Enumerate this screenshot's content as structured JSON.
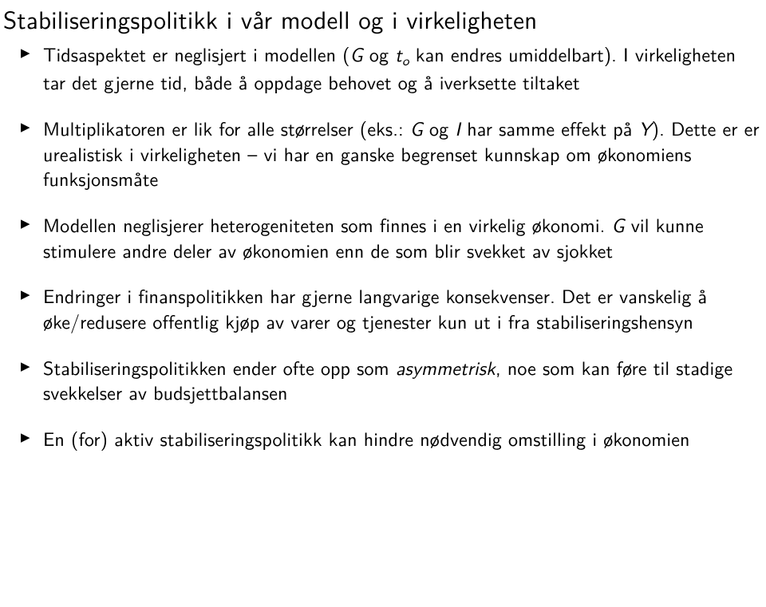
{
  "title": "Stabiliseringspolitikk i vår modell og i virkeligheten",
  "bullets": [
    {
      "html": "Tidsaspektet er neglisjert i modellen (<span class='ital'>G</span> og <span class='ital'>t<span class='sub'>o</span></span> kan endres umiddelbart). I virkeligheten tar det gjerne tid, både å oppdage behovet og å iverksette tiltaket"
    },
    {
      "html": "Multiplikatoren er lik for alle størrelser (eks.: <span class='ital'>G</span> og <span class='ital'>I</span> har samme effekt på <span class='ital'>Y</span>). Dette er er urealistisk i virkeligheten – vi har en ganske begrenset kunnskap om økonomiens funksjonsmåte"
    },
    {
      "html": "Modellen neglisjerer heterogeniteten som finnes i en virkelig økonomi. <span class='ital'>G</span> vil kunne stimulere andre deler av økonomien enn de som blir svekket av sjokket"
    },
    {
      "html": "Endringer i finanspolitikken har gjerne langvarige konsekvenser. Det er vanskelig å øke/redusere offentlig kjøp av varer og tjenester kun ut i fra stabiliseringshensyn"
    },
    {
      "html": "Stabiliseringspolitikken ender ofte opp som <span class='ital'>asymmetrisk</span>, noe som kan føre til stadige svekkelser av budsjettbalansen"
    },
    {
      "html": "En (for) aktiv stabiliseringspolitikk kan hindre nødvendig omstilling i økonomien"
    }
  ]
}
